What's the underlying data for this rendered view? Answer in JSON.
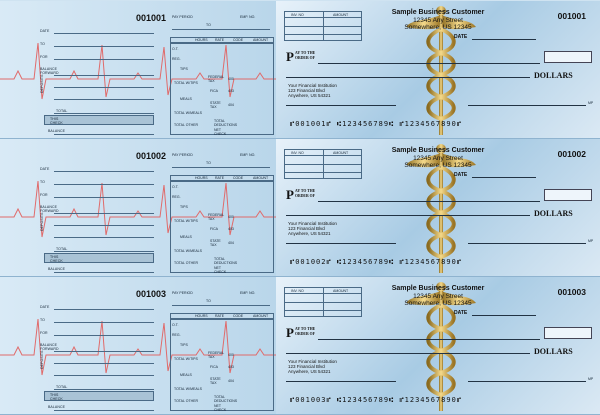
{
  "checks": [
    {
      "number": "001001",
      "micr": "⑈001001⑈ ⑆123456789⑆ ⑈1234567890⑈"
    },
    {
      "number": "001002",
      "micr": "⑈001002⑈ ⑆123456789⑆ ⑈1234567890⑈"
    },
    {
      "number": "001003",
      "micr": "⑈001003⑈ ⑆123456789⑆ ⑈1234567890⑈"
    }
  ],
  "customer": {
    "name": "Sample Business Customer",
    "street": "12345 Any Street",
    "city": "Somewhere, US 12345"
  },
  "bank": {
    "name": "Your Financial Institution",
    "street": "123 Financial Blvd",
    "city": "Anywhere, US 54321"
  },
  "check_labels": {
    "inv_no": "INV. NO",
    "amount": "AMOUNT",
    "date": "DATE",
    "pay_big": "P",
    "pay_small_1": "AY TO THE",
    "pay_small_2": "ORDER OF",
    "dollars": "DOLLARS",
    "mp": "MP"
  },
  "stub_labels": {
    "date": "DATE",
    "to": "TO",
    "for": "FOR",
    "balance_forward": "BALANCE FORWARD",
    "deposits": "DEPOSITS",
    "total": "TOTAL",
    "this_check": "THIS CHECK",
    "balance": "BALANCE",
    "pay_period": "PAY PERIOD",
    "emp_no": "EMP. NO.",
    "to2": "TO",
    "hours": "HOURS",
    "rate": "RATE",
    "code": "CODE",
    "amount": "AMOUNT",
    "ot": "O.T.",
    "reg": "REG.",
    "tips": "TIPS",
    "total_wtips": "TOTAL W/TIPS",
    "meals": "MEALS",
    "total_wmeals": "TOTAL W/MEALS",
    "total_other": "TOTAL OTHER",
    "federal_tax": "FEDERAL TAX",
    "fica": "FICA",
    "state_tax": "STATE TAX",
    "total_deductions": "TOTAL DEDUCTIONS",
    "net_check": "NET CHECK",
    "code_400": "400",
    "code_403": "403",
    "code_404": "404",
    "code_405": "405"
  }
}
